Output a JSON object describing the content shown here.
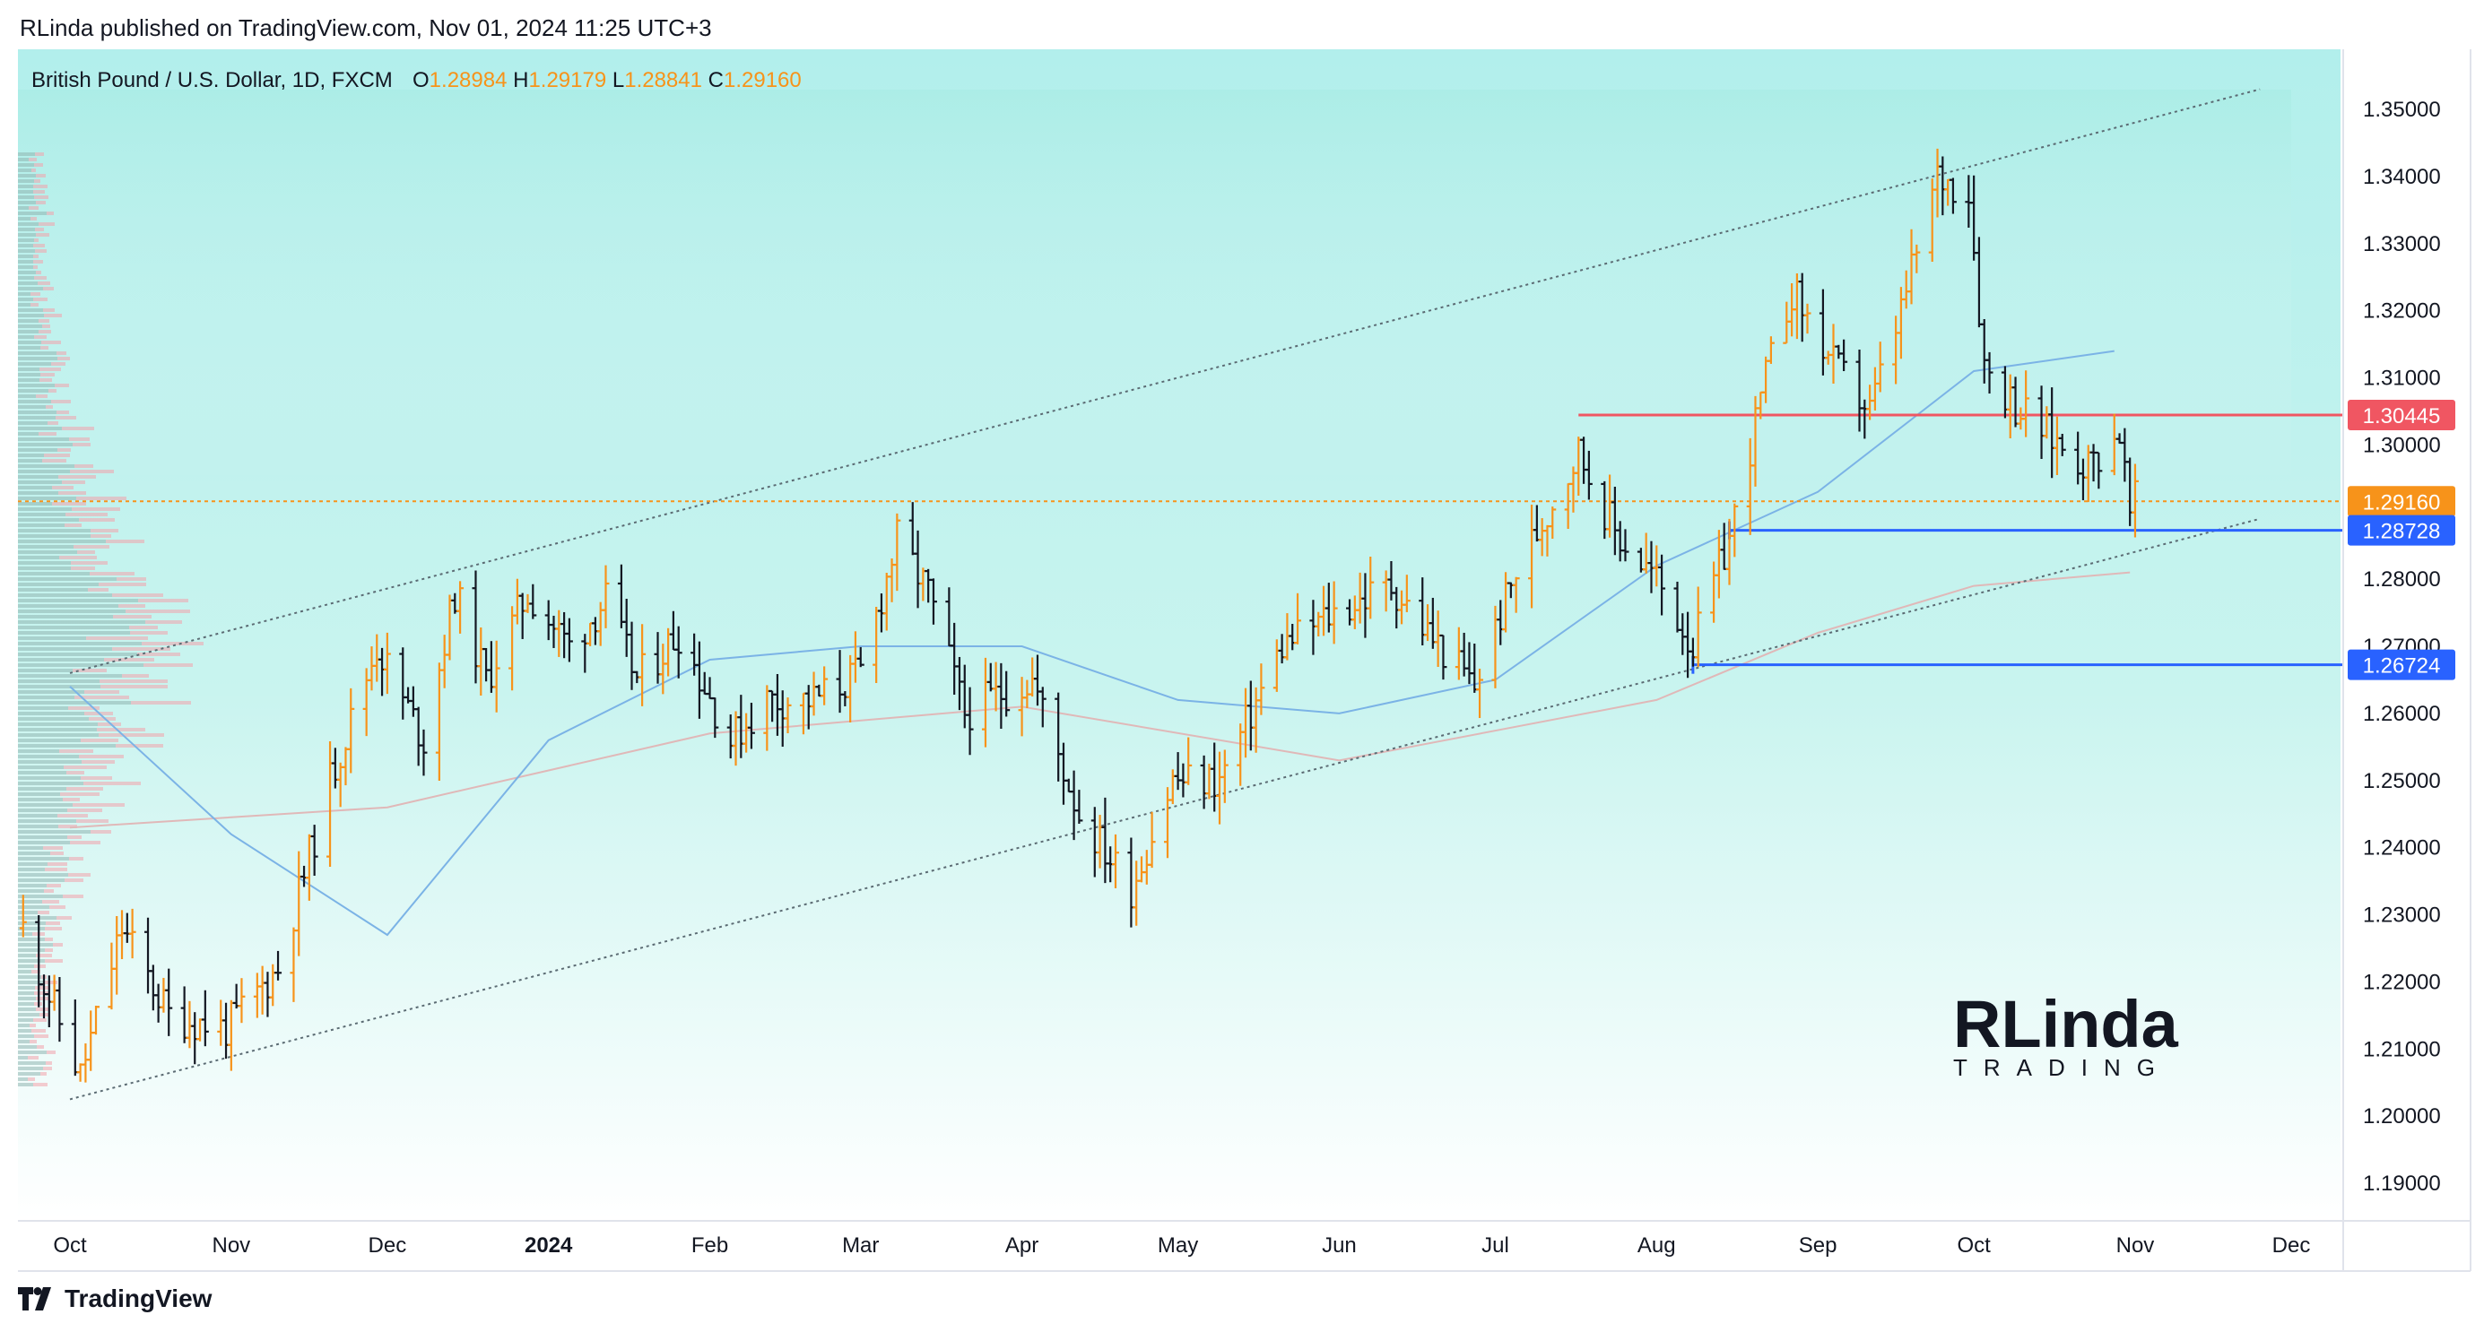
{
  "header": {
    "publisher_line": "RLinda published on TradingView.com, Nov 01, 2024 11:25 UTC+3"
  },
  "footer": {
    "brand": "TradingView"
  },
  "watermark": {
    "line1": "RLinda",
    "line2": "TRADING"
  },
  "colors": {
    "bull": "#f7931a",
    "bear": "#131722",
    "resistance": "#f05662",
    "support": "#2962ff",
    "current": "#f7931a",
    "channel": "#5b6b73",
    "ma_fast": "#7bb3e6",
    "ma_slow": "#e0b8b8",
    "bg_top": "#b2efec",
    "bg_bottom": "#ffffff"
  },
  "chart_data": {
    "type": "ohlc",
    "title": "British Pound / U.S. Dollar, 1D, FXCM",
    "symbol": "British Pound / U.S. Dollar",
    "interval": "1D",
    "exchange": "FXCM",
    "ohlc_legend": {
      "O": "1.28984",
      "H": "1.29179",
      "L": "1.28841",
      "C": "1.29160"
    },
    "ylim": [
      1.1833,
      1.356
    ],
    "y_ticks": [
      "1.35000",
      "1.34000",
      "1.33000",
      "1.32000",
      "1.31000",
      "1.30000",
      "1.28000",
      "1.27000",
      "1.26000",
      "1.25000",
      "1.24000",
      "1.23000",
      "1.22000",
      "1.21000",
      "1.20000",
      "1.19000"
    ],
    "x_ticks": [
      {
        "label": "Oct",
        "date": "2023-10-01"
      },
      {
        "label": "Nov",
        "date": "2023-11-01"
      },
      {
        "label": "Dec",
        "date": "2023-12-01"
      },
      {
        "label": "2024",
        "date": "2024-01-01"
      },
      {
        "label": "Feb",
        "date": "2024-02-01"
      },
      {
        "label": "Mar",
        "date": "2024-03-01"
      },
      {
        "label": "Apr",
        "date": "2024-04-01"
      },
      {
        "label": "May",
        "date": "2024-05-01"
      },
      {
        "label": "Jun",
        "date": "2024-06-01"
      },
      {
        "label": "Jul",
        "date": "2024-07-01"
      },
      {
        "label": "Aug",
        "date": "2024-08-01"
      },
      {
        "label": "Sep",
        "date": "2024-09-01"
      },
      {
        "label": "Oct",
        "date": "2024-10-01"
      },
      {
        "label": "Nov",
        "date": "2024-11-01"
      },
      {
        "label": "Dec",
        "date": "2024-12-01"
      }
    ],
    "x_range": [
      "2023-09-21",
      "2024-12-11"
    ],
    "price_path": [
      {
        "date": "2023-09-22",
        "close": 1.228
      },
      {
        "date": "2023-10-03",
        "close": 1.206
      },
      {
        "date": "2023-10-11",
        "close": 1.228
      },
      {
        "date": "2023-10-20",
        "close": 1.215
      },
      {
        "date": "2023-10-31",
        "close": 1.213
      },
      {
        "date": "2023-11-10",
        "close": 1.222
      },
      {
        "date": "2023-11-20",
        "close": 1.25
      },
      {
        "date": "2023-11-29",
        "close": 1.27
      },
      {
        "date": "2023-12-08",
        "close": 1.256
      },
      {
        "date": "2023-12-14",
        "close": 1.278
      },
      {
        "date": "2023-12-20",
        "close": 1.265
      },
      {
        "date": "2023-12-28",
        "close": 1.278
      },
      {
        "date": "2024-01-05",
        "close": 1.27
      },
      {
        "date": "2024-01-12",
        "close": 1.277
      },
      {
        "date": "2024-01-18",
        "close": 1.265
      },
      {
        "date": "2024-01-26",
        "close": 1.272
      },
      {
        "date": "2024-02-05",
        "close": 1.256
      },
      {
        "date": "2024-02-12",
        "close": 1.262
      },
      {
        "date": "2024-02-21",
        "close": 1.262
      },
      {
        "date": "2024-03-01",
        "close": 1.266
      },
      {
        "date": "2024-03-08",
        "close": 1.286
      },
      {
        "date": "2024-03-14",
        "close": 1.278
      },
      {
        "date": "2024-03-21",
        "close": 1.26
      },
      {
        "date": "2024-03-28",
        "close": 1.263
      },
      {
        "date": "2024-04-03",
        "close": 1.265
      },
      {
        "date": "2024-04-12",
        "close": 1.245
      },
      {
        "date": "2024-04-22",
        "close": 1.234
      },
      {
        "date": "2024-04-30",
        "close": 1.25
      },
      {
        "date": "2024-05-09",
        "close": 1.25
      },
      {
        "date": "2024-05-21",
        "close": 1.27
      },
      {
        "date": "2024-05-31",
        "close": 1.275
      },
      {
        "date": "2024-06-11",
        "close": 1.279
      },
      {
        "date": "2024-06-18",
        "close": 1.272
      },
      {
        "date": "2024-06-27",
        "close": 1.264
      },
      {
        "date": "2024-07-05",
        "close": 1.281
      },
      {
        "date": "2024-07-17",
        "close": 1.299
      },
      {
        "date": "2024-07-24",
        "close": 1.287
      },
      {
        "date": "2024-08-01",
        "close": 1.28
      },
      {
        "date": "2024-08-08",
        "close": 1.27
      },
      {
        "date": "2024-08-15",
        "close": 1.286
      },
      {
        "date": "2024-08-22",
        "close": 1.31
      },
      {
        "date": "2024-08-27",
        "close": 1.323
      },
      {
        "date": "2024-09-04",
        "close": 1.312
      },
      {
        "date": "2024-09-11",
        "close": 1.305
      },
      {
        "date": "2024-09-17",
        "close": 1.32
      },
      {
        "date": "2024-09-24",
        "close": 1.34
      },
      {
        "date": "2024-09-30",
        "close": 1.338
      },
      {
        "date": "2024-10-03",
        "close": 1.312
      },
      {
        "date": "2024-10-09",
        "close": 1.306
      },
      {
        "date": "2024-10-16",
        "close": 1.301
      },
      {
        "date": "2024-10-23",
        "close": 1.297
      },
      {
        "date": "2024-10-29",
        "close": 1.302
      },
      {
        "date": "2024-10-31",
        "close": 1.2895
      },
      {
        "date": "2024-11-01",
        "close": 1.2916
      }
    ],
    "key_levels": [
      {
        "name": "resistance",
        "value": 1.30445,
        "label": "1.30445",
        "from": "2024-07-17"
      },
      {
        "name": "current-price",
        "value": 1.2916,
        "label": "1.29160",
        "from": "2023-09-21"
      },
      {
        "name": "support-upper",
        "value": 1.28728,
        "label": "1.28728",
        "from": "2024-08-15"
      },
      {
        "name": "support-lower",
        "value": 1.26724,
        "label": "1.26724",
        "from": "2024-08-08"
      }
    ],
    "channel": {
      "upper": [
        {
          "date": "2023-10-01",
          "value": 1.266
        },
        {
          "date": "2024-11-25",
          "value": 1.353
        }
      ],
      "lower": [
        {
          "date": "2023-10-01",
          "value": 1.2025
        },
        {
          "date": "2024-11-25",
          "value": 1.289
        }
      ]
    },
    "ma_fast": [
      {
        "date": "2023-10-01",
        "value": 1.264
      },
      {
        "date": "2023-11-01",
        "value": 1.242
      },
      {
        "date": "2023-12-01",
        "value": 1.227
      },
      {
        "date": "2024-01-01",
        "value": 1.256
      },
      {
        "date": "2024-02-01",
        "value": 1.268
      },
      {
        "date": "2024-03-01",
        "value": 1.27
      },
      {
        "date": "2024-04-01",
        "value": 1.27
      },
      {
        "date": "2024-05-01",
        "value": 1.262
      },
      {
        "date": "2024-06-01",
        "value": 1.26
      },
      {
        "date": "2024-07-01",
        "value": 1.265
      },
      {
        "date": "2024-08-01",
        "value": 1.282
      },
      {
        "date": "2024-09-01",
        "value": 1.293
      },
      {
        "date": "2024-10-01",
        "value": 1.311
      },
      {
        "date": "2024-10-28",
        "value": 1.314
      }
    ],
    "ma_slow": [
      {
        "date": "2023-10-01",
        "value": 1.243
      },
      {
        "date": "2023-12-01",
        "value": 1.246
      },
      {
        "date": "2024-02-01",
        "value": 1.257
      },
      {
        "date": "2024-04-01",
        "value": 1.261
      },
      {
        "date": "2024-06-01",
        "value": 1.253
      },
      {
        "date": "2024-08-01",
        "value": 1.262
      },
      {
        "date": "2024-09-01",
        "value": 1.272
      },
      {
        "date": "2024-10-01",
        "value": 1.279
      },
      {
        "date": "2024-10-31",
        "value": 1.281
      }
    ]
  }
}
